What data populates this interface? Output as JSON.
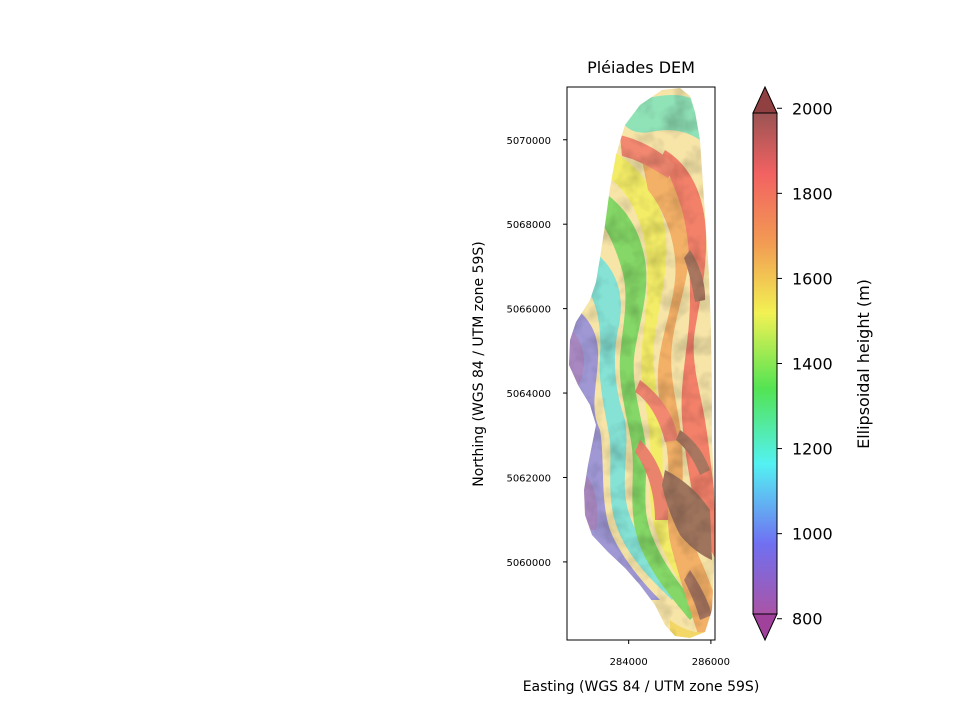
{
  "chart_data": {
    "type": "heatmap",
    "title": "Pléiades DEM",
    "xlabel": "Easting (WGS 84 / UTM zone 59S)",
    "ylabel": "Northing (WGS 84 / UTM zone 59S)",
    "xlim": [
      282500,
      286100
    ],
    "ylim": [
      5058150,
      5071250
    ],
    "x_ticks": [
      284000,
      286000
    ],
    "x_tick_labels": [
      "284000",
      "286000"
    ],
    "y_ticks": [
      5060000,
      5062000,
      5064000,
      5066000,
      5068000,
      5070000
    ],
    "y_tick_labels": [
      "5060000",
      "5062000",
      "5064000",
      "5066000",
      "5068000",
      "5070000"
    ],
    "colorbar": {
      "label": "Ellipsoidal height (m)",
      "range": [
        750,
        2050
      ],
      "ticks": [
        800,
        1000,
        1200,
        1400,
        1600,
        1800,
        2000
      ],
      "tick_labels": [
        "800",
        "1000",
        "1200",
        "1400",
        "1600",
        "1800",
        "2000"
      ],
      "extend": "both",
      "colormap": "rainbow",
      "alpha": 0.6,
      "colors": [
        "#a0419c",
        "#6060f0",
        "#40f0f0",
        "#40e040",
        "#f0f040",
        "#f09040",
        "#f05050",
        "#904040"
      ]
    },
    "grid": false,
    "legend": "none"
  }
}
